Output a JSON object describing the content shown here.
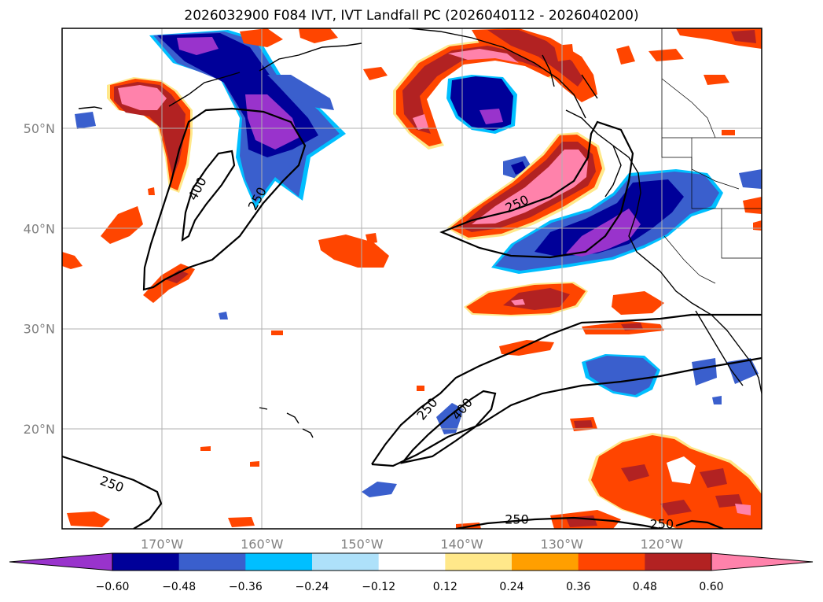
{
  "title": "2026032900 F084 IVT, IVT Landfall PC (2026040112 - 2026040200)",
  "colors": {
    "purple": "#9933cc",
    "navy": "#000099",
    "royal": "#3a5fcd",
    "cyan": "#00bfff",
    "lightblue": "#aee1fa",
    "white": "#ffffff",
    "lightyellow": "#ffe88a",
    "orange": "#ff9f00",
    "redorange": "#ff4500",
    "firebrick": "#b22222",
    "pink": "#ff82ab",
    "grid": "#b0b0b0",
    "axis_label": "#808080"
  },
  "chart_data": {
    "type": "heatmap",
    "title": "2026032900 F084 IVT, IVT Landfall PC (2026040112 - 2026040200)",
    "xaxis": {
      "ticks": [
        "170°W",
        "160°W",
        "150°W",
        "140°W",
        "130°W",
        "120°W"
      ],
      "range": [
        "180°W",
        "110°W"
      ]
    },
    "yaxis": {
      "ticks": [
        "20°N",
        "30°N",
        "40°N",
        "50°N"
      ],
      "range": [
        "10°N",
        "60°N"
      ]
    },
    "grid": true,
    "colorbar": {
      "ticks": [
        "−0.60",
        "−0.48",
        "−0.36",
        "−0.24",
        "−0.12",
        "0.12",
        "0.24",
        "0.36",
        "0.48",
        "0.60"
      ],
      "colors": [
        "#9933cc",
        "#000099",
        "#3a5fcd",
        "#00bfff",
        "#aee1fa",
        "#ffffff",
        "#ffe88a",
        "#ff9f00",
        "#ff4500",
        "#b22222",
        "#ff82ab"
      ],
      "extend": "both"
    },
    "contour_levels": [
      250,
      400
    ],
    "contour_labels": [
      {
        "text": "400",
        "lon": -166.5,
        "lat": 44.0,
        "rot": -62
      },
      {
        "text": "250",
        "lon": -160.5,
        "lat": 43.0,
        "rot": -62
      },
      {
        "text": "250",
        "lon": -134.5,
        "lat": 42.5,
        "rot": -25
      },
      {
        "text": "250",
        "lon": -143.5,
        "lat": 22.0,
        "rot": -50
      },
      {
        "text": "400",
        "lon": -140.0,
        "lat": 22.0,
        "rot": -50
      },
      {
        "text": "250",
        "lon": -175.0,
        "lat": 14.5,
        "rot": 20
      },
      {
        "text": "250",
        "lon": -134.5,
        "lat": 11.0,
        "rot": 0
      },
      {
        "text": "250",
        "lon": -120.0,
        "lat": 10.5,
        "rot": 0
      }
    ]
  }
}
